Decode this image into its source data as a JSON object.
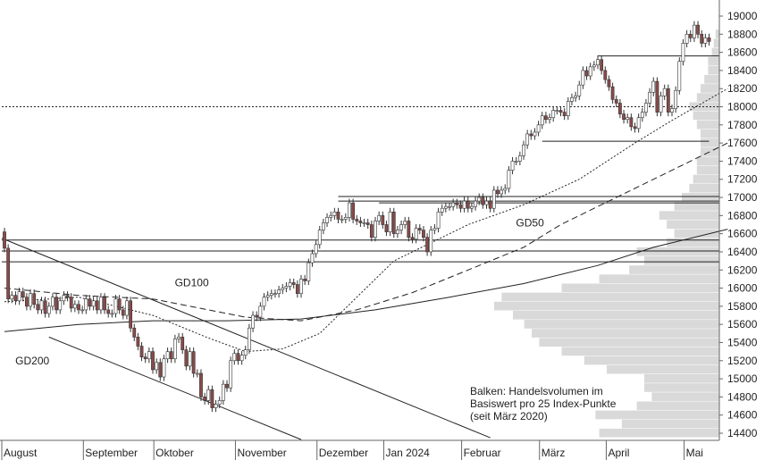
{
  "chart_data": {
    "type": "candlestick",
    "title": "",
    "xlabel": "",
    "ylabel": "",
    "ylim": [
      14250,
      19100
    ],
    "y_ticks": [
      14400,
      14600,
      14800,
      15000,
      15200,
      15400,
      15600,
      15800,
      16000,
      16200,
      16400,
      16600,
      16800,
      17000,
      17200,
      17400,
      17600,
      17800,
      18000,
      18200,
      18400,
      18600,
      18800,
      19000
    ],
    "x_ticks": [
      {
        "label": "August",
        "i": 0
      },
      {
        "label": "September",
        "i": 22
      },
      {
        "label": "Oktober",
        "i": 41
      },
      {
        "label": "November",
        "i": 63
      },
      {
        "label": "Dezember",
        "i": 85
      },
      {
        "label": "Jan 2024",
        "i": 103
      },
      {
        "label": "Februar",
        "i": 124
      },
      {
        "label": "März",
        "i": 145
      },
      {
        "label": "April",
        "i": 163
      },
      {
        "label": "Mai",
        "i": 184
      }
    ],
    "close": [
      16440,
      15880,
      15920,
      15860,
      15960,
      15900,
      15800,
      15940,
      15820,
      15760,
      15860,
      15720,
      15800,
      15900,
      15760,
      15860,
      15920,
      15900,
      15780,
      15820,
      15760,
      15760,
      15880,
      15800,
      15860,
      15760,
      15900,
      15760,
      15720,
      15720,
      15880,
      15760,
      15700,
      15860,
      15560,
      15460,
      15360,
      15240,
      15220,
      15300,
      15100,
      15180,
      15020,
      15220,
      15300,
      15220,
      15440,
      15460,
      15320,
      15140,
      15300,
      15060,
      15060,
      14800,
      14760,
      14880,
      14680,
      14720,
      14760,
      14940,
      14900,
      15200,
      15280,
      15200,
      15260,
      15320,
      15560,
      15700,
      15680,
      15800,
      15900,
      15920,
      15940,
      15940,
      15980,
      16000,
      16020,
      16060,
      16040,
      15940,
      16100,
      16080,
      16280,
      16380,
      16480,
      16640,
      16720,
      16780,
      16800,
      16840,
      16760,
      16760,
      16780,
      16940,
      16760,
      16740,
      16720,
      16720,
      16700,
      16560,
      16740,
      16800,
      16700,
      16620,
      16840,
      16600,
      16640,
      16700,
      16740,
      16560,
      16540,
      16660,
      16640,
      16560,
      16400,
      16640,
      16660,
      16840,
      16880,
      16900,
      16900,
      16940,
      16920,
      16880,
      16960,
      16880,
      16900,
      16960,
      17000,
      16920,
      16960,
      16880,
      17080,
      17040,
      17080,
      17100,
      17300,
      17400,
      17400,
      17460,
      17580,
      17700,
      17680,
      17720,
      17800,
      17900,
      17860,
      17880,
      17960,
      17960,
      17940,
      17900,
      18060,
      18100,
      18120,
      18240,
      18400,
      18340,
      18440,
      18460,
      18520,
      18400,
      18300,
      18220,
      18080,
      18040,
      17920,
      17860,
      17880,
      17780,
      17760,
      17880,
      17940,
      18040,
      18160,
      18280,
      17940,
      18120,
      18200,
      17940,
      17980,
      18180,
      18500,
      18700,
      18800,
      18760,
      18900,
      18800,
      18700,
      18760,
      18720
    ],
    "ma": {
      "GD50": [
        [
          0,
          15850
        ],
        [
          20,
          15900
        ],
        [
          40,
          15700
        ],
        [
          55,
          15450
        ],
        [
          65,
          15300
        ],
        [
          75,
          15330
        ],
        [
          85,
          15500
        ],
        [
          95,
          15900
        ],
        [
          105,
          16300
        ],
        [
          115,
          16500
        ],
        [
          125,
          16700
        ],
        [
          140,
          16920
        ],
        [
          155,
          17200
        ],
        [
          170,
          17600
        ],
        [
          180,
          17850
        ],
        [
          195,
          18200
        ]
      ],
      "GD100": [
        [
          0,
          16000
        ],
        [
          20,
          15920
        ],
        [
          40,
          15880
        ],
        [
          55,
          15760
        ],
        [
          65,
          15680
        ],
        [
          80,
          15640
        ],
        [
          95,
          15760
        ],
        [
          110,
          15950
        ],
        [
          125,
          16200
        ],
        [
          140,
          16450
        ],
        [
          150,
          16700
        ],
        [
          165,
          17000
        ],
        [
          180,
          17300
        ],
        [
          195,
          17600
        ]
      ],
      "GD200": [
        [
          0,
          15520
        ],
        [
          20,
          15600
        ],
        [
          40,
          15640
        ],
        [
          60,
          15640
        ],
        [
          80,
          15660
        ],
        [
          100,
          15760
        ],
        [
          120,
          15900
        ],
        [
          140,
          16050
        ],
        [
          160,
          16250
        ],
        [
          175,
          16450
        ],
        [
          195,
          16650
        ]
      ]
    },
    "hlines": [
      {
        "y": 16290,
        "x0": -2,
        "x1": 197
      },
      {
        "y": 16410,
        "x0": -2,
        "x1": 197
      },
      {
        "y": 16530,
        "x0": -2,
        "x1": 197
      },
      {
        "y": 16960,
        "x0": 90,
        "x1": 197
      },
      {
        "y": 17010,
        "x0": 90,
        "x1": 197
      },
      {
        "y": 16940,
        "x0": 101,
        "x1": 197
      },
      {
        "y": 18560,
        "x0": 160,
        "x1": 197
      },
      {
        "y": 17620,
        "x0": 145,
        "x1": 190
      },
      {
        "y": 18000,
        "x0": -2,
        "x1": 197,
        "dotted": true
      }
    ],
    "trendlines": [
      {
        "x0": -2,
        "y0": 16550,
        "x1": 131,
        "y1": 14350
      },
      {
        "x0": 12,
        "y0": 15460,
        "x1": 80,
        "y1": 14330
      }
    ],
    "volume_profile": [
      {
        "y": 14400,
        "v": 0.32
      },
      {
        "y": 14500,
        "v": 0.26
      },
      {
        "y": 14600,
        "v": 0.33
      },
      {
        "y": 14700,
        "v": 0.22
      },
      {
        "y": 14800,
        "v": 0.18
      },
      {
        "y": 14900,
        "v": 0.2
      },
      {
        "y": 15000,
        "v": 0.2
      },
      {
        "y": 15100,
        "v": 0.3
      },
      {
        "y": 15200,
        "v": 0.36
      },
      {
        "y": 15300,
        "v": 0.42
      },
      {
        "y": 15400,
        "v": 0.48
      },
      {
        "y": 15500,
        "v": 0.5
      },
      {
        "y": 15600,
        "v": 0.52
      },
      {
        "y": 15700,
        "v": 0.55
      },
      {
        "y": 15800,
        "v": 0.6
      },
      {
        "y": 15900,
        "v": 0.58
      },
      {
        "y": 16000,
        "v": 0.42
      },
      {
        "y": 16100,
        "v": 0.32
      },
      {
        "y": 16200,
        "v": 0.24
      },
      {
        "y": 16300,
        "v": 0.2
      },
      {
        "y": 16400,
        "v": 0.22
      },
      {
        "y": 16500,
        "v": 0.14
      },
      {
        "y": 16600,
        "v": 0.12
      },
      {
        "y": 16700,
        "v": 0.14
      },
      {
        "y": 16800,
        "v": 0.16
      },
      {
        "y": 16900,
        "v": 0.12
      },
      {
        "y": 17000,
        "v": 0.1
      },
      {
        "y": 17100,
        "v": 0.08
      },
      {
        "y": 17200,
        "v": 0.07
      },
      {
        "y": 17300,
        "v": 0.06
      },
      {
        "y": 17400,
        "v": 0.06
      },
      {
        "y": 17500,
        "v": 0.05
      },
      {
        "y": 17600,
        "v": 0.05
      },
      {
        "y": 17700,
        "v": 0.05
      },
      {
        "y": 17800,
        "v": 0.06
      },
      {
        "y": 17900,
        "v": 0.07
      },
      {
        "y": 18000,
        "v": 0.08
      },
      {
        "y": 18100,
        "v": 0.06
      },
      {
        "y": 18200,
        "v": 0.05
      },
      {
        "y": 18300,
        "v": 0.04
      },
      {
        "y": 18400,
        "v": 0.03
      },
      {
        "y": 18500,
        "v": 0.03
      },
      {
        "y": 18600,
        "v": 0.02
      },
      {
        "y": 18700,
        "v": 0.015
      },
      {
        "y": 18800,
        "v": 0.01
      }
    ],
    "annotations": [
      {
        "id": "gd100",
        "text": "GD100",
        "i": 44,
        "y": 16020
      },
      {
        "id": "gd200",
        "text": "GD200",
        "i": 1,
        "y": 15160
      },
      {
        "id": "gd50",
        "text": "GD50",
        "i": 136,
        "y": 16680
      }
    ],
    "note_lines": [
      "Balken: Handelsvolumen im",
      "Basiswert pro 25 Index-Punkte",
      "(seit März 2020)"
    ],
    "colors": {
      "up": "#ffffff",
      "down": "#8a4a4a",
      "line": "#222222",
      "volume": "#d9d9d9",
      "grid": "#cccccc"
    }
  }
}
